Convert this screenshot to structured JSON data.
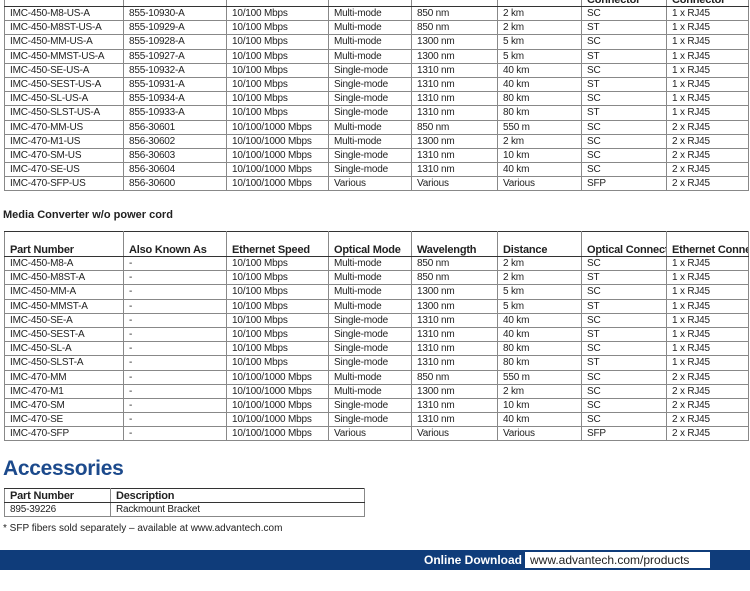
{
  "top_table": {
    "header": [
      "Connector",
      "Connector"
    ],
    "rows": [
      [
        "IMC-450-M8-US-A",
        "855-10930-A",
        "10/100 Mbps",
        "Multi-mode",
        "850 nm",
        "2 km",
        "SC",
        "1 x RJ45"
      ],
      [
        "IMC-450-M8ST-US-A",
        "855-10929-A",
        "10/100 Mbps",
        "Multi-mode",
        "850 nm",
        "2 km",
        "ST",
        "1 x RJ45"
      ],
      [
        "IMC-450-MM-US-A",
        "855-10928-A",
        "10/100 Mbps",
        "Multi-mode",
        "1300 nm",
        "5 km",
        "SC",
        "1 x RJ45"
      ],
      [
        "IMC-450-MMST-US-A",
        "855-10927-A",
        "10/100 Mbps",
        "Multi-mode",
        "1300 nm",
        "5 km",
        "ST",
        "1 x RJ45"
      ],
      [
        "IMC-450-SE-US-A",
        "855-10932-A",
        "10/100 Mbps",
        "Single-mode",
        "1310 nm",
        "40 km",
        "SC",
        "1 x RJ45"
      ],
      [
        "IMC-450-SEST-US-A",
        "855-10931-A",
        "10/100 Mbps",
        "Single-mode",
        "1310 nm",
        "40 km",
        "ST",
        "1 x RJ45"
      ],
      [
        "IMC-450-SL-US-A",
        "855-10934-A",
        "10/100 Mbps",
        "Single-mode",
        "1310 nm",
        "80 km",
        "SC",
        "1 x RJ45"
      ],
      [
        "IMC-450-SLST-US-A",
        "855-10933-A",
        "10/100 Mbps",
        "Single-mode",
        "1310 nm",
        "80 km",
        "ST",
        "1 x RJ45"
      ],
      [
        "IMC-470-MM-US",
        "856-30601",
        "10/100/1000 Mbps",
        "Multi-mode",
        "850 nm",
        "550 m",
        "SC",
        "2 x RJ45"
      ],
      [
        "IMC-470-M1-US",
        "856-30602",
        "10/100/1000 Mbps",
        "Multi-mode",
        "1300 nm",
        "2 km",
        "SC",
        "2 x RJ45"
      ],
      [
        "IMC-470-SM-US",
        "856-30603",
        "10/100/1000 Mbps",
        "Single-mode",
        "1310 nm",
        "10 km",
        "SC",
        "2 x RJ45"
      ],
      [
        "IMC-470-SE-US",
        "856-30604",
        "10/100/1000 Mbps",
        "Single-mode",
        "1310 nm",
        "40 km",
        "SC",
        "2 x RJ45"
      ],
      [
        "IMC-470-SFP-US",
        "856-30600",
        "10/100/1000 Mbps",
        "Various",
        "Various",
        "Various",
        "SFP",
        "2 x RJ45"
      ]
    ]
  },
  "section_title": "Media Converter w/o power cord",
  "table": {
    "header": [
      "Part Number",
      "Also Known As",
      "Ethernet Speed",
      "Optical Mode",
      "Wavelength",
      "Distance",
      "Optical Connector",
      "Ethernet Connector"
    ],
    "rows": [
      [
        "IMC-450-M8-A",
        "-",
        "10/100 Mbps",
        "Multi-mode",
        "850 nm",
        "2 km",
        "SC",
        "1 x RJ45"
      ],
      [
        "IMC-450-M8ST-A",
        "-",
        "10/100 Mbps",
        "Multi-mode",
        "850 nm",
        "2 km",
        "ST",
        "1 x RJ45"
      ],
      [
        "IMC-450-MM-A",
        "-",
        "10/100 Mbps",
        "Multi-mode",
        "1300 nm",
        "5 km",
        "SC",
        "1 x RJ45"
      ],
      [
        "IMC-450-MMST-A",
        "-",
        "10/100 Mbps",
        "Multi-mode",
        "1300 nm",
        "5 km",
        "ST",
        "1 x RJ45"
      ],
      [
        "IMC-450-SE-A",
        "-",
        "10/100 Mbps",
        "Single-mode",
        "1310 nm",
        "40 km",
        "SC",
        "1 x RJ45"
      ],
      [
        "IMC-450-SEST-A",
        "-",
        "10/100 Mbps",
        "Single-mode",
        "1310 nm",
        "40 km",
        "ST",
        "1 x RJ45"
      ],
      [
        "IMC-450-SL-A",
        "-",
        "10/100 Mbps",
        "Single-mode",
        "1310 nm",
        "80 km",
        "SC",
        "1 x RJ45"
      ],
      [
        "IMC-450-SLST-A",
        "-",
        "10/100 Mbps",
        "Single-mode",
        "1310 nm",
        "80 km",
        "ST",
        "1 x RJ45"
      ],
      [
        "IMC-470-MM",
        "-",
        "10/100/1000 Mbps",
        "Multi-mode",
        "850 nm",
        "550 m",
        "SC",
        "2 x RJ45"
      ],
      [
        "IMC-470-M1",
        "-",
        "10/100/1000 Mbps",
        "Multi-mode",
        "1300 nm",
        "2 km",
        "SC",
        "2 x RJ45"
      ],
      [
        "IMC-470-SM",
        "-",
        "10/100/1000 Mbps",
        "Single-mode",
        "1310 nm",
        "10 km",
        "SC",
        "2 x RJ45"
      ],
      [
        "IMC-470-SE",
        "-",
        "10/100/1000 Mbps",
        "Single-mode",
        "1310 nm",
        "40 km",
        "SC",
        "2 x RJ45"
      ],
      [
        "IMC-470-SFP",
        "-",
        "10/100/1000 Mbps",
        "Various",
        "Various",
        "Various",
        "SFP",
        "2 x RJ45"
      ]
    ]
  },
  "accessories": {
    "title": "Accessories",
    "header": [
      "Part Number",
      "Description"
    ],
    "rows": [
      [
        "895-39226",
        "Rackmount Bracket"
      ]
    ]
  },
  "footnote": "* SFP fibers sold separately – available at www.advantech.com",
  "footer": {
    "label": "Online Download",
    "url": "www.advantech.com/products"
  }
}
